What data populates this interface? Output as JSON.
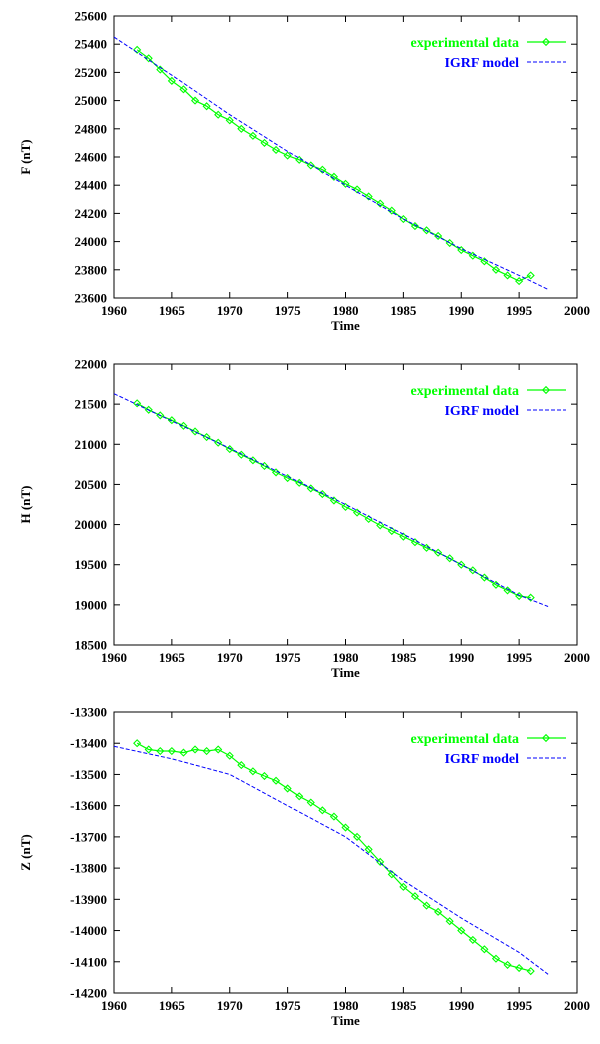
{
  "chart_data": [
    {
      "type": "line",
      "id": "F",
      "ylabel": "F (nT)",
      "xlabel": "Time",
      "xlim": [
        1960,
        2000
      ],
      "ylim": [
        23600,
        25600
      ],
      "xticks": [
        1960,
        1965,
        1970,
        1975,
        1980,
        1985,
        1990,
        1995,
        2000
      ],
      "yticks": [
        23600,
        23800,
        24000,
        24200,
        24400,
        24600,
        24800,
        25000,
        25200,
        25400,
        25600
      ],
      "legend_position": "top-right",
      "series": [
        {
          "name": "experimental data",
          "style": "line-diamond",
          "color": "#00ff00",
          "x": [
            1962,
            1963,
            1964,
            1965,
            1966,
            1967,
            1968,
            1969,
            1970,
            1971,
            1972,
            1973,
            1974,
            1975,
            1976,
            1977,
            1978,
            1979,
            1980,
            1981,
            1982,
            1983,
            1984,
            1985,
            1986,
            1987,
            1988,
            1989,
            1990,
            1991,
            1992,
            1993,
            1994,
            1995,
            1996
          ],
          "y": [
            25360,
            25300,
            25220,
            25140,
            25080,
            25000,
            24960,
            24900,
            24860,
            24800,
            24750,
            24700,
            24650,
            24610,
            24580,
            24540,
            24510,
            24460,
            24410,
            24370,
            24320,
            24270,
            24220,
            24160,
            24110,
            24080,
            24040,
            23990,
            23940,
            23900,
            23860,
            23800,
            23760,
            23720,
            23760
          ]
        },
        {
          "name": "IGRF model",
          "style": "dashed",
          "color": "#0000ff",
          "x": [
            1960,
            1965,
            1970,
            1975,
            1980,
            1985,
            1990,
            1995,
            1997.5
          ],
          "y": [
            25450,
            25180,
            24900,
            24640,
            24400,
            24160,
            23950,
            23760,
            23660
          ]
        }
      ]
    },
    {
      "type": "line",
      "id": "H",
      "ylabel": "H (nT)",
      "xlabel": "Time",
      "xlim": [
        1960,
        2000
      ],
      "ylim": [
        18500,
        22000
      ],
      "xticks": [
        1960,
        1965,
        1970,
        1975,
        1980,
        1985,
        1990,
        1995,
        2000
      ],
      "yticks": [
        18500,
        19000,
        19500,
        20000,
        20500,
        21000,
        21500,
        22000
      ],
      "legend_position": "top-right",
      "series": [
        {
          "name": "experimental data",
          "style": "line-diamond",
          "color": "#00ff00",
          "x": [
            1962,
            1963,
            1964,
            1965,
            1966,
            1967,
            1968,
            1969,
            1970,
            1971,
            1972,
            1973,
            1974,
            1975,
            1976,
            1977,
            1978,
            1979,
            1980,
            1981,
            1982,
            1983,
            1984,
            1985,
            1986,
            1987,
            1988,
            1989,
            1990,
            1991,
            1992,
            1993,
            1994,
            1995,
            1996
          ],
          "y": [
            21510,
            21430,
            21360,
            21300,
            21230,
            21160,
            21090,
            21020,
            20940,
            20870,
            20800,
            20730,
            20650,
            20580,
            20520,
            20450,
            20380,
            20300,
            20220,
            20150,
            20070,
            19990,
            19920,
            19850,
            19780,
            19710,
            19650,
            19580,
            19500,
            19430,
            19340,
            19250,
            19180,
            19110,
            19090
          ]
        },
        {
          "name": "IGRF model",
          "style": "dashed",
          "color": "#0000ff",
          "x": [
            1960,
            1965,
            1970,
            1975,
            1980,
            1985,
            1990,
            1995,
            1997.5
          ],
          "y": [
            21630,
            21290,
            20950,
            20600,
            20250,
            19880,
            19500,
            19120,
            18980
          ]
        }
      ]
    },
    {
      "type": "line",
      "id": "Z",
      "ylabel": "Z (nT)",
      "xlabel": "Time",
      "xlim": [
        1960,
        2000
      ],
      "ylim": [
        -14200,
        -13300
      ],
      "xticks": [
        1960,
        1965,
        1970,
        1975,
        1980,
        1985,
        1990,
        1995,
        2000
      ],
      "yticks": [
        -13300,
        -13400,
        -13500,
        -13600,
        -13700,
        -13800,
        -13900,
        -14000,
        -14100,
        -14200
      ],
      "legend_position": "top-right",
      "series": [
        {
          "name": "experimental data",
          "style": "line-diamond",
          "color": "#00ff00",
          "x": [
            1962,
            1963,
            1964,
            1965,
            1966,
            1967,
            1968,
            1969,
            1970,
            1971,
            1972,
            1973,
            1974,
            1975,
            1976,
            1977,
            1978,
            1979,
            1980,
            1981,
            1982,
            1983,
            1984,
            1985,
            1986,
            1987,
            1988,
            1989,
            1990,
            1991,
            1992,
            1993,
            1994,
            1995,
            1996
          ],
          "y": [
            -13400,
            -13420,
            -13425,
            -13425,
            -13430,
            -13420,
            -13425,
            -13420,
            -13440,
            -13470,
            -13490,
            -13505,
            -13520,
            -13545,
            -13570,
            -13590,
            -13615,
            -13635,
            -13670,
            -13700,
            -13740,
            -13780,
            -13820,
            -13860,
            -13890,
            -13920,
            -13940,
            -13970,
            -14000,
            -14030,
            -14060,
            -14090,
            -14110,
            -14120,
            -14130
          ]
        },
        {
          "name": "IGRF model",
          "style": "dashed",
          "color": "#0000ff",
          "x": [
            1960,
            1965,
            1970,
            1975,
            1980,
            1985,
            1990,
            1995,
            1997.5
          ],
          "y": [
            -13410,
            -13450,
            -13500,
            -13600,
            -13700,
            -13840,
            -13960,
            -14070,
            -14140
          ]
        }
      ]
    }
  ]
}
